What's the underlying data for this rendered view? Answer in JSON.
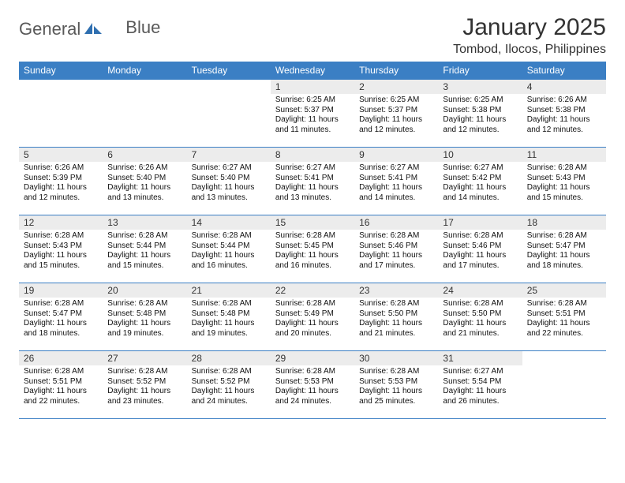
{
  "brand": {
    "word1": "General",
    "word2": "Blue"
  },
  "title": "January 2025",
  "location": "Tombod, Ilocos, Philippines",
  "colors": {
    "header_bg": "#3b7fc4",
    "header_fg": "#ffffff",
    "daynum_bg": "#ececec",
    "border": "#3b7fc4",
    "text": "#111111",
    "logo_gray": "#595959",
    "logo_blue": "#3b7fc4"
  },
  "typography": {
    "month_title_size_pt": 22,
    "location_size_pt": 12,
    "header_cell_size_pt": 9,
    "body_size_pt": 7.5,
    "font_family": "Arial"
  },
  "weekdays": [
    "Sunday",
    "Monday",
    "Tuesday",
    "Wednesday",
    "Thursday",
    "Friday",
    "Saturday"
  ],
  "weeks": [
    [
      {
        "n": "",
        "sunrise": "",
        "sunset": "",
        "daylight": ""
      },
      {
        "n": "",
        "sunrise": "",
        "sunset": "",
        "daylight": ""
      },
      {
        "n": "",
        "sunrise": "",
        "sunset": "",
        "daylight": ""
      },
      {
        "n": "1",
        "sunrise": "6:25 AM",
        "sunset": "5:37 PM",
        "daylight": "11 hours and 11 minutes."
      },
      {
        "n": "2",
        "sunrise": "6:25 AM",
        "sunset": "5:37 PM",
        "daylight": "11 hours and 12 minutes."
      },
      {
        "n": "3",
        "sunrise": "6:25 AM",
        "sunset": "5:38 PM",
        "daylight": "11 hours and 12 minutes."
      },
      {
        "n": "4",
        "sunrise": "6:26 AM",
        "sunset": "5:38 PM",
        "daylight": "11 hours and 12 minutes."
      }
    ],
    [
      {
        "n": "5",
        "sunrise": "6:26 AM",
        "sunset": "5:39 PM",
        "daylight": "11 hours and 12 minutes."
      },
      {
        "n": "6",
        "sunrise": "6:26 AM",
        "sunset": "5:40 PM",
        "daylight": "11 hours and 13 minutes."
      },
      {
        "n": "7",
        "sunrise": "6:27 AM",
        "sunset": "5:40 PM",
        "daylight": "11 hours and 13 minutes."
      },
      {
        "n": "8",
        "sunrise": "6:27 AM",
        "sunset": "5:41 PM",
        "daylight": "11 hours and 13 minutes."
      },
      {
        "n": "9",
        "sunrise": "6:27 AM",
        "sunset": "5:41 PM",
        "daylight": "11 hours and 14 minutes."
      },
      {
        "n": "10",
        "sunrise": "6:27 AM",
        "sunset": "5:42 PM",
        "daylight": "11 hours and 14 minutes."
      },
      {
        "n": "11",
        "sunrise": "6:28 AM",
        "sunset": "5:43 PM",
        "daylight": "11 hours and 15 minutes."
      }
    ],
    [
      {
        "n": "12",
        "sunrise": "6:28 AM",
        "sunset": "5:43 PM",
        "daylight": "11 hours and 15 minutes."
      },
      {
        "n": "13",
        "sunrise": "6:28 AM",
        "sunset": "5:44 PM",
        "daylight": "11 hours and 15 minutes."
      },
      {
        "n": "14",
        "sunrise": "6:28 AM",
        "sunset": "5:44 PM",
        "daylight": "11 hours and 16 minutes."
      },
      {
        "n": "15",
        "sunrise": "6:28 AM",
        "sunset": "5:45 PM",
        "daylight": "11 hours and 16 minutes."
      },
      {
        "n": "16",
        "sunrise": "6:28 AM",
        "sunset": "5:46 PM",
        "daylight": "11 hours and 17 minutes."
      },
      {
        "n": "17",
        "sunrise": "6:28 AM",
        "sunset": "5:46 PM",
        "daylight": "11 hours and 17 minutes."
      },
      {
        "n": "18",
        "sunrise": "6:28 AM",
        "sunset": "5:47 PM",
        "daylight": "11 hours and 18 minutes."
      }
    ],
    [
      {
        "n": "19",
        "sunrise": "6:28 AM",
        "sunset": "5:47 PM",
        "daylight": "11 hours and 18 minutes."
      },
      {
        "n": "20",
        "sunrise": "6:28 AM",
        "sunset": "5:48 PM",
        "daylight": "11 hours and 19 minutes."
      },
      {
        "n": "21",
        "sunrise": "6:28 AM",
        "sunset": "5:48 PM",
        "daylight": "11 hours and 19 minutes."
      },
      {
        "n": "22",
        "sunrise": "6:28 AM",
        "sunset": "5:49 PM",
        "daylight": "11 hours and 20 minutes."
      },
      {
        "n": "23",
        "sunrise": "6:28 AM",
        "sunset": "5:50 PM",
        "daylight": "11 hours and 21 minutes."
      },
      {
        "n": "24",
        "sunrise": "6:28 AM",
        "sunset": "5:50 PM",
        "daylight": "11 hours and 21 minutes."
      },
      {
        "n": "25",
        "sunrise": "6:28 AM",
        "sunset": "5:51 PM",
        "daylight": "11 hours and 22 minutes."
      }
    ],
    [
      {
        "n": "26",
        "sunrise": "6:28 AM",
        "sunset": "5:51 PM",
        "daylight": "11 hours and 22 minutes."
      },
      {
        "n": "27",
        "sunrise": "6:28 AM",
        "sunset": "5:52 PM",
        "daylight": "11 hours and 23 minutes."
      },
      {
        "n": "28",
        "sunrise": "6:28 AM",
        "sunset": "5:52 PM",
        "daylight": "11 hours and 24 minutes."
      },
      {
        "n": "29",
        "sunrise": "6:28 AM",
        "sunset": "5:53 PM",
        "daylight": "11 hours and 24 minutes."
      },
      {
        "n": "30",
        "sunrise": "6:28 AM",
        "sunset": "5:53 PM",
        "daylight": "11 hours and 25 minutes."
      },
      {
        "n": "31",
        "sunrise": "6:27 AM",
        "sunset": "5:54 PM",
        "daylight": "11 hours and 26 minutes."
      },
      {
        "n": "",
        "sunrise": "",
        "sunset": "",
        "daylight": ""
      }
    ]
  ],
  "labels": {
    "sunrise": "Sunrise:",
    "sunset": "Sunset:",
    "daylight": "Daylight:"
  }
}
